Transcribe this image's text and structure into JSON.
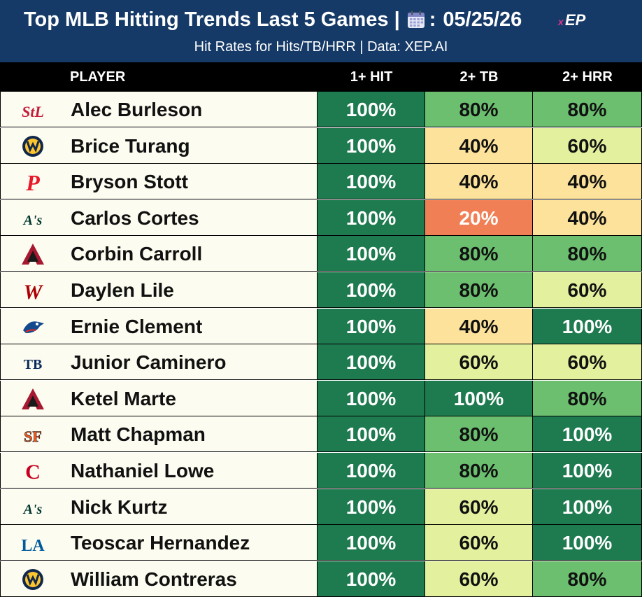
{
  "header": {
    "title_prefix": "Top MLB Hitting Trends Last 5 Games |",
    "title_date_sep": ":",
    "date": "05/25/26",
    "subtitle": "Hit Rates for Hits/TB/HRR | Data: XEP.AI",
    "brand": "XEP"
  },
  "columns": {
    "player": "PLAYER",
    "hit": "1+ HIT",
    "tb": "2+ TB",
    "hrr": "2+ HRR"
  },
  "colors": {
    "navy": "#163a67",
    "dark_green": "#1e7a4f",
    "mid_green": "#6bbf6f",
    "light_green": "#e3f19f",
    "yellow": "#fce29a",
    "orange": "#f17f55"
  },
  "rows": [
    {
      "logo": "cardinals-logo",
      "name": "Alec Burleson",
      "hit": "100%",
      "tb": "80%",
      "hrr": "80%",
      "tb_level": "mid_green",
      "hrr_level": "mid_green"
    },
    {
      "logo": "brewers-logo",
      "name": "Brice Turang",
      "hit": "100%",
      "tb": "40%",
      "hrr": "60%",
      "tb_level": "yellow",
      "hrr_level": "light_green"
    },
    {
      "logo": "phillies-logo",
      "name": "Bryson Stott",
      "hit": "100%",
      "tb": "40%",
      "hrr": "40%",
      "tb_level": "yellow",
      "hrr_level": "yellow"
    },
    {
      "logo": "athletics-logo",
      "name": "Carlos Cortes",
      "hit": "100%",
      "tb": "20%",
      "hrr": "40%",
      "tb_level": "orange",
      "hrr_level": "yellow"
    },
    {
      "logo": "diamondbacks-logo",
      "name": "Corbin Carroll",
      "hit": "100%",
      "tb": "80%",
      "hrr": "80%",
      "tb_level": "mid_green",
      "hrr_level": "mid_green"
    },
    {
      "logo": "nationals-logo",
      "name": "Daylen Lile",
      "hit": "100%",
      "tb": "80%",
      "hrr": "60%",
      "tb_level": "mid_green",
      "hrr_level": "light_green"
    },
    {
      "logo": "bluejays-logo",
      "name": "Ernie Clement",
      "hit": "100%",
      "tb": "40%",
      "hrr": "100%",
      "tb_level": "yellow",
      "hrr_level": "dark_green"
    },
    {
      "logo": "rays-logo",
      "name": "Junior Caminero",
      "hit": "100%",
      "tb": "60%",
      "hrr": "60%",
      "tb_level": "light_green",
      "hrr_level": "light_green"
    },
    {
      "logo": "diamondbacks-logo",
      "name": "Ketel Marte",
      "hit": "100%",
      "tb": "100%",
      "hrr": "80%",
      "tb_level": "dark_green",
      "hrr_level": "mid_green"
    },
    {
      "logo": "giants-logo",
      "name": "Matt Chapman",
      "hit": "100%",
      "tb": "80%",
      "hrr": "100%",
      "tb_level": "mid_green",
      "hrr_level": "dark_green"
    },
    {
      "logo": "reds-logo",
      "name": "Nathaniel Lowe",
      "hit": "100%",
      "tb": "80%",
      "hrr": "100%",
      "tb_level": "mid_green",
      "hrr_level": "dark_green"
    },
    {
      "logo": "athletics-logo",
      "name": "Nick Kurtz",
      "hit": "100%",
      "tb": "60%",
      "hrr": "100%",
      "tb_level": "light_green",
      "hrr_level": "dark_green"
    },
    {
      "logo": "dodgers-logo",
      "name": "Teoscar Hernandez",
      "hit": "100%",
      "tb": "60%",
      "hrr": "100%",
      "tb_level": "light_green",
      "hrr_level": "dark_green"
    },
    {
      "logo": "brewers-logo",
      "name": "William Contreras",
      "hit": "100%",
      "tb": "60%",
      "hrr": "80%",
      "tb_level": "light_green",
      "hrr_level": "mid_green"
    }
  ],
  "logo_text": {
    "cardinals-logo": "StL",
    "brewers-logo": "",
    "phillies-logo": "P",
    "athletics-logo": "A's",
    "diamondbacks-logo": "A",
    "nationals-logo": "W",
    "bluejays-logo": "",
    "rays-logo": "TB",
    "giants-logo": "SF",
    "reds-logo": "C",
    "dodgers-logo": "LA"
  }
}
